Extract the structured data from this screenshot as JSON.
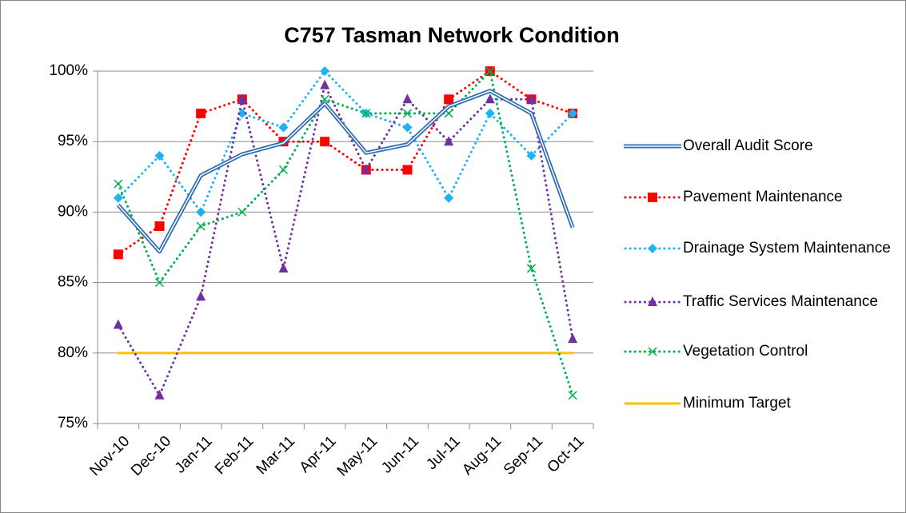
{
  "chart_data": {
    "type": "line",
    "title": "C757 Tasman Network Condition",
    "categories": [
      "Nov-10",
      "Dec-10",
      "Jan-11",
      "Feb-11",
      "Mar-11",
      "Apr-11",
      "May-11",
      "Jun-11",
      "Jul-11",
      "Aug-11",
      "Sep-11",
      "Oct-11"
    ],
    "series": [
      {
        "name": "Overall Audit Score",
        "color": "#2e6db4",
        "line_style": "double",
        "marker": "none",
        "values": [
          90.5,
          87.2,
          92.6,
          94.1,
          94.9,
          97.7,
          94.2,
          94.8,
          97.5,
          98.6,
          97.0,
          88.9
        ]
      },
      {
        "name": "Pavement Maintenance",
        "color": "#ff0000",
        "line_style": "dotted",
        "marker": "square",
        "values": [
          87,
          89,
          97,
          98,
          95,
          95,
          93,
          93,
          98,
          100,
          98,
          97
        ]
      },
      {
        "name": "Drainage System Maintenance",
        "color": "#1cb4f0",
        "line_style": "dotted",
        "marker": "diamond",
        "values": [
          91,
          94,
          90,
          97,
          96,
          100,
          97,
          96,
          91,
          97,
          94,
          97
        ]
      },
      {
        "name": "Traffic Services Maintenance",
        "color": "#7030a0",
        "line_style": "dotted",
        "marker": "triangle",
        "values": [
          82,
          77,
          84,
          98,
          86,
          99,
          93,
          98,
          95,
          98,
          98,
          81
        ]
      },
      {
        "name": "Vegetation Control",
        "color": "#00b050",
        "line_style": "dotted",
        "marker": "x",
        "values": [
          92,
          85,
          89,
          90,
          93,
          98,
          97,
          97,
          97,
          100,
          86,
          77
        ]
      },
      {
        "name": "Minimum Target",
        "color": "#ffc000",
        "line_style": "solid",
        "marker": "none",
        "values": [
          80,
          80,
          80,
          80,
          80,
          80,
          80,
          80,
          80,
          80,
          80,
          80
        ]
      }
    ],
    "ylim": [
      75,
      100
    ],
    "yticks": [
      {
        "value": 75,
        "label": "75%"
      },
      {
        "value": 80,
        "label": "80%"
      },
      {
        "value": 85,
        "label": "85%"
      },
      {
        "value": 90,
        "label": "90%"
      },
      {
        "value": 95,
        "label": "95%"
      },
      {
        "value": 100,
        "label": "100%"
      }
    ],
    "grid": true,
    "legend": "right"
  }
}
